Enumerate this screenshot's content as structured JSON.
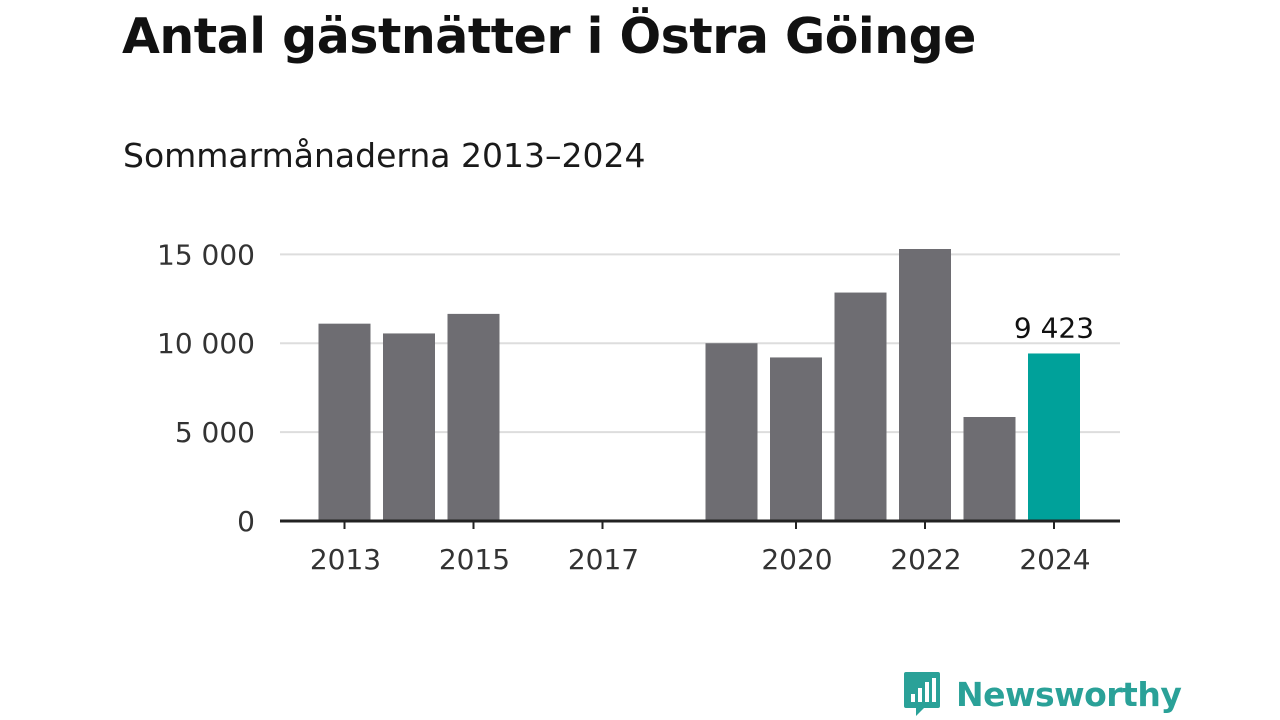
{
  "header": {
    "title": "Antal gästnätter i Östra Göinge",
    "subtitle": "Sommarmånaderna 2013–2024"
  },
  "chart_data": {
    "type": "bar",
    "title": "Antal gästnätter i Östra Göinge",
    "subtitle": "Sommarmånaderna 2013–2024",
    "xlabel": "",
    "ylabel": "",
    "categories": [
      "2013",
      "2014",
      "2015",
      "2016",
      "2017",
      "2018",
      "2019",
      "2020",
      "2021",
      "2022",
      "2023",
      "2024"
    ],
    "values": [
      11100,
      10550,
      11650,
      null,
      null,
      null,
      10000,
      9200,
      12850,
      15300,
      5850,
      9423
    ],
    "ylim": [
      0,
      15300
    ],
    "yticks": [
      0,
      5000,
      10000,
      15000
    ],
    "ytick_labels": [
      "0",
      "5 000",
      "10 000",
      "15 000"
    ],
    "xtick_labels": [
      "2013",
      "2015",
      "2017",
      "2020",
      "2022",
      "2024"
    ],
    "xtick_years": [
      "2013",
      "2015",
      "2017",
      "2020",
      "2022",
      "2024"
    ],
    "highlight_category": "2024",
    "highlight_label": "9 423",
    "grid": true,
    "colors": {
      "bar": "#6e6d72",
      "highlight": "#00a19a",
      "grid": "#dddddd",
      "axis": "#222222"
    }
  },
  "footer": {
    "logo_text": "Newsworthy",
    "logo_color": "#2aa198",
    "logo_icon": "bar-chart-speech-bubble-icon"
  }
}
